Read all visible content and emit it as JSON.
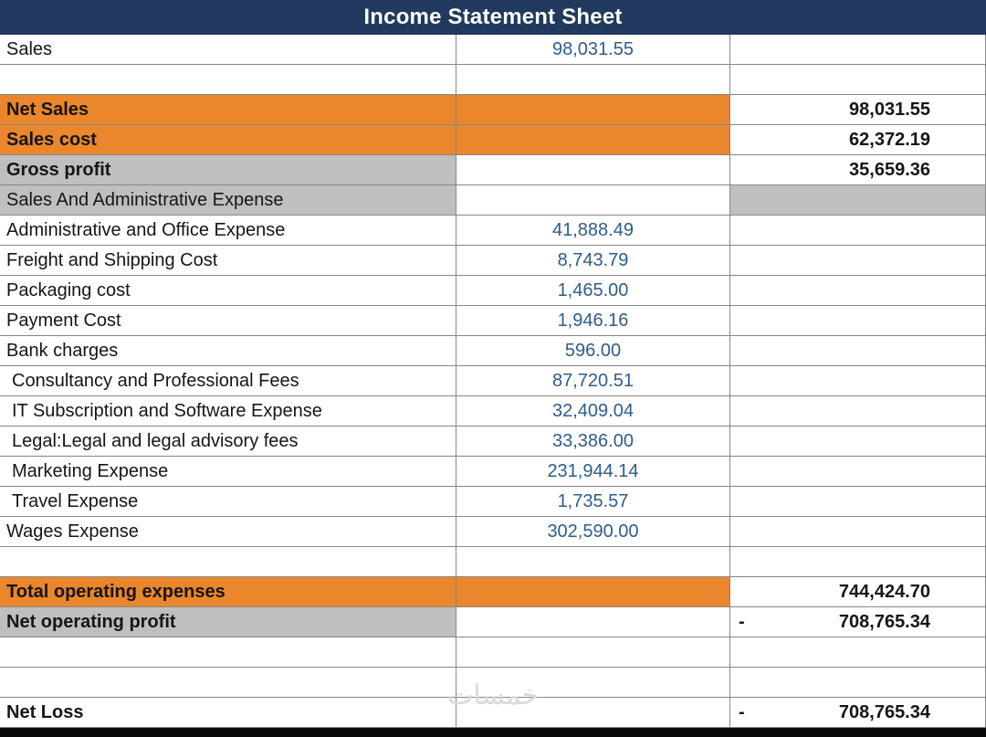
{
  "title": "Income Statement Sheet",
  "watermark_text": "خمسات",
  "colors": {
    "header_bg": "#20395C",
    "orange": "#EA862C",
    "gray": "#BFBFBF",
    "value_blue": "#2F5D8C",
    "bottom_bar": "#0a0a0a"
  },
  "rows": [
    {
      "label": "Sales",
      "mid": "98,031.55",
      "right": "",
      "minus": ""
    },
    {
      "label": "",
      "mid": "",
      "right": "",
      "minus": ""
    },
    {
      "label": "Net Sales",
      "mid": "",
      "right": "98,031.55",
      "minus": "",
      "label_bg": "orange",
      "mid_bg": "orange",
      "bold": true
    },
    {
      "label": "Sales cost",
      "mid": "",
      "right": "62,372.19",
      "minus": "",
      "label_bg": "orange",
      "mid_bg": "orange",
      "bold": true
    },
    {
      "label": "Gross profit",
      "mid": "",
      "right": "35,659.36",
      "minus": "",
      "label_bg": "gray",
      "bold": true
    },
    {
      "label": "Sales And Administrative Expense",
      "mid": "",
      "right": "",
      "minus": "",
      "label_bg": "gray",
      "right_bg": "gray"
    },
    {
      "label": "Administrative and Office Expense",
      "mid": "41,888.49",
      "right": "",
      "minus": ""
    },
    {
      "label": "Freight and Shipping Cost",
      "mid": "8,743.79",
      "right": "",
      "minus": ""
    },
    {
      "label": "Packaging cost",
      "mid": "1,465.00",
      "right": "",
      "minus": ""
    },
    {
      "label": "Payment Cost",
      "mid": "1,946.16",
      "right": "",
      "minus": ""
    },
    {
      "label": "Bank charges",
      "mid": "596.00",
      "right": "",
      "minus": ""
    },
    {
      "label": "Consultancy and Professional Fees",
      "mid": "87,720.51",
      "right": "",
      "minus": "",
      "indent": true
    },
    {
      "label": "IT Subscription and Software Expense",
      "mid": "32,409.04",
      "right": "",
      "minus": "",
      "indent": true
    },
    {
      "label": "Legal:Legal and legal advisory fees",
      "mid": "33,386.00",
      "right": "",
      "minus": "",
      "indent": true
    },
    {
      "label": "Marketing Expense",
      "mid": "231,944.14",
      "right": "",
      "minus": "",
      "indent": true
    },
    {
      "label": "Travel Expense",
      "mid": "1,735.57",
      "right": "",
      "minus": "",
      "indent": true
    },
    {
      "label": "Wages Expense",
      "mid": "302,590.00",
      "right": "",
      "minus": ""
    },
    {
      "label": "",
      "mid": "",
      "right": "",
      "minus": ""
    },
    {
      "label": "Total operating expenses",
      "mid": "",
      "right": "744,424.70",
      "minus": "",
      "label_bg": "orange",
      "mid_bg": "orange",
      "bold": true
    },
    {
      "label": "Net operating profit",
      "mid": "",
      "right": "708,765.34",
      "minus": "-",
      "label_bg": "gray",
      "bold": true
    },
    {
      "label": "",
      "mid": "",
      "right": "",
      "minus": ""
    },
    {
      "label": "",
      "mid": "",
      "right": "",
      "minus": ""
    },
    {
      "label": "Net Loss",
      "mid": "",
      "right": "708,765.34",
      "minus": "-",
      "bold": true
    }
  ]
}
